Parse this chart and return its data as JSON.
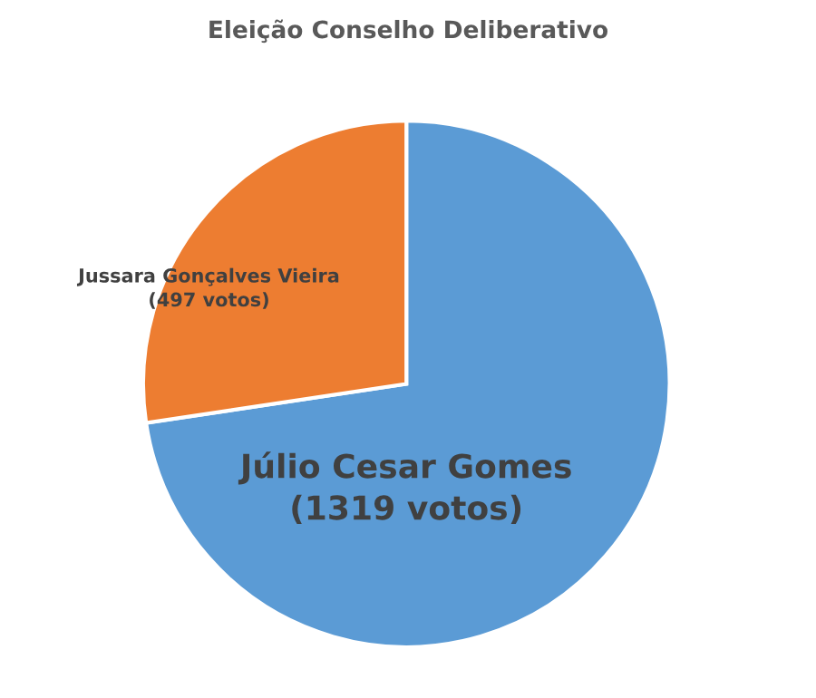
{
  "chart_data": {
    "type": "pie",
    "title": "Eleição Conselho Deliberativo",
    "categories": [
      "Júlio Cesar Gomes",
      "Jussara Gonçalves Vieira"
    ],
    "values": [
      1319,
      497
    ],
    "value_labels": [
      "(1319 votos)",
      "(497 votos)"
    ],
    "colors": [
      "#5b9bd5",
      "#ed7d31"
    ],
    "legend": false
  }
}
